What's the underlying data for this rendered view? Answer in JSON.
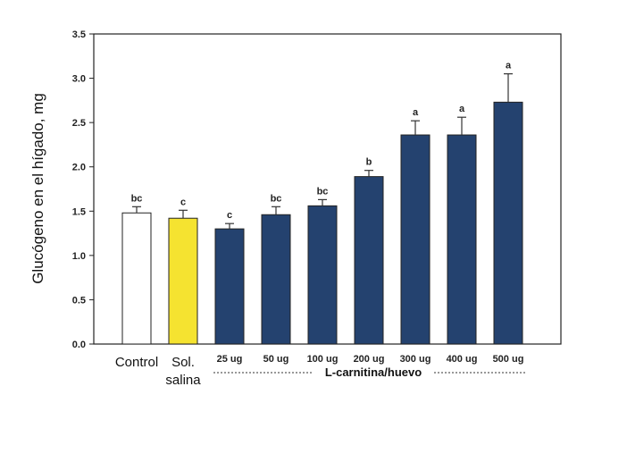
{
  "chart_data": {
    "type": "bar",
    "ylabel": "Glucógeno en el hígado, mg",
    "ylim": [
      0,
      3.5
    ],
    "yticks": [
      "0.0",
      "0.5",
      "1.0",
      "1.5",
      "2.0",
      "2.5",
      "3.0",
      "3.5"
    ],
    "group_label": "L-carnitina/huevo",
    "categories": [
      {
        "label": "Control",
        "line2": "",
        "style": "big",
        "value": 1.48,
        "error": 0.07,
        "sig": "bc",
        "color": "#ffffff"
      },
      {
        "label": "Sol.",
        "line2": "salina",
        "style": "big",
        "value": 1.42,
        "error": 0.09,
        "sig": "c",
        "color": "#f5e330"
      },
      {
        "label": "25 ug",
        "line2": "",
        "style": "small",
        "value": 1.3,
        "error": 0.06,
        "sig": "c",
        "color": "#24426f"
      },
      {
        "label": "50 ug",
        "line2": "",
        "style": "small",
        "value": 1.46,
        "error": 0.09,
        "sig": "bc",
        "color": "#24426f"
      },
      {
        "label": "100 ug",
        "line2": "",
        "style": "small",
        "value": 1.56,
        "error": 0.07,
        "sig": "bc",
        "color": "#24426f"
      },
      {
        "label": "200 ug",
        "line2": "",
        "style": "small",
        "value": 1.89,
        "error": 0.07,
        "sig": "b",
        "color": "#24426f"
      },
      {
        "label": "300 ug",
        "line2": "",
        "style": "small",
        "value": 2.36,
        "error": 0.16,
        "sig": "a",
        "color": "#24426f"
      },
      {
        "label": "400 ug",
        "line2": "",
        "style": "small",
        "value": 2.36,
        "error": 0.2,
        "sig": "a",
        "color": "#24426f"
      },
      {
        "label": "500 ug",
        "line2": "",
        "style": "small",
        "value": 2.73,
        "error": 0.32,
        "sig": "a",
        "color": "#24426f"
      }
    ]
  }
}
